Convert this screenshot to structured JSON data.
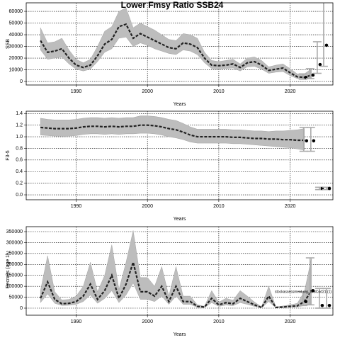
{
  "chart_data": [
    {
      "type": "line",
      "title": "Lower Fmsy Ratio SSB24",
      "xlabel": "Years",
      "ylabel": "SSB",
      "x": [
        1985,
        1986,
        1987,
        1988,
        1989,
        1990,
        1991,
        1992,
        1993,
        1994,
        1995,
        1996,
        1997,
        1998,
        1999,
        2000,
        2001,
        2002,
        2003,
        2004,
        2005,
        2006,
        2007,
        2008,
        2009,
        2010,
        2011,
        2012,
        2013,
        2014,
        2015,
        2016,
        2017,
        2018,
        2019,
        2020,
        2021,
        2022,
        2023
      ],
      "values": [
        35000,
        25000,
        26000,
        28000,
        20000,
        14000,
        12000,
        14000,
        22000,
        32000,
        36000,
        47000,
        49000,
        37000,
        41000,
        38000,
        35000,
        32000,
        29000,
        28000,
        33000,
        32000,
        29000,
        20000,
        14000,
        13500,
        14000,
        15000,
        12000,
        16000,
        17000,
        14000,
        9500,
        10500,
        11500,
        7500,
        4000,
        3500,
        5500
      ],
      "lower": [
        27000,
        19000,
        20000,
        21000,
        15000,
        10500,
        9000,
        10500,
        17000,
        25000,
        28000,
        37000,
        38000,
        30000,
        33000,
        31000,
        28000,
        26000,
        24000,
        23000,
        27000,
        26000,
        23000,
        16000,
        11000,
        10500,
        11000,
        11500,
        9000,
        12500,
        13000,
        10500,
        7000,
        8000,
        8500,
        5000,
        2500,
        2000,
        2500
      ],
      "upper": [
        46000,
        33000,
        34000,
        37000,
        27000,
        19000,
        16000,
        19000,
        30000,
        43000,
        47000,
        60000,
        63000,
        46000,
        50000,
        47000,
        44000,
        40000,
        36000,
        35000,
        41000,
        40000,
        37000,
        25000,
        18000,
        17000,
        18000,
        19000,
        15000,
        20000,
        21000,
        18000,
        12500,
        14000,
        15000,
        11000,
        6500,
        6500,
        11000
      ],
      "points": {
        "x": [
          2022.2,
          2023.2,
          2024.2,
          2025.1
        ],
        "values": [
          3500,
          5500,
          14500,
          31000
        ],
        "lower": [
          2000,
          2500,
          7000,
          13000
        ],
        "upper": [
          6500,
          11000,
          34000,
          70000
        ]
      },
      "color": "#bdbdbd",
      "xlim": [
        1983,
        2026
      ],
      "xticks": [
        1990,
        2000,
        2010,
        2020
      ],
      "ylim": [
        -3000,
        67300
      ],
      "yticks": [
        0,
        10000,
        20000,
        30000,
        40000,
        50000,
        60000
      ],
      "grid": true
    },
    {
      "type": "line",
      "xlabel": "Years",
      "ylabel": "F3-5",
      "x": [
        1985,
        1986,
        1987,
        1988,
        1989,
        1990,
        1991,
        1992,
        1993,
        1994,
        1995,
        1996,
        1997,
        1998,
        1999,
        2000,
        2001,
        2002,
        2003,
        2004,
        2005,
        2006,
        2007,
        2008,
        2009,
        2010,
        2011,
        2012,
        2013,
        2014,
        2015,
        2016,
        2017,
        2018,
        2019,
        2020,
        2021,
        2022
      ],
      "values": [
        1.16,
        1.15,
        1.14,
        1.14,
        1.14,
        1.15,
        1.17,
        1.18,
        1.18,
        1.17,
        1.18,
        1.17,
        1.18,
        1.18,
        1.2,
        1.2,
        1.19,
        1.17,
        1.14,
        1.12,
        1.08,
        1.03,
        1.0,
        1.0,
        1.0,
        1.0,
        1.0,
        0.99,
        0.99,
        0.98,
        0.97,
        0.97,
        0.96,
        0.96,
        0.95,
        0.95,
        0.94,
        0.94
      ],
      "lower": [
        1.03,
        1.02,
        1.01,
        1.01,
        1.01,
        1.02,
        1.04,
        1.05,
        1.05,
        1.04,
        1.05,
        1.04,
        1.05,
        1.05,
        1.06,
        1.06,
        1.05,
        1.03,
        1.0,
        0.98,
        0.95,
        0.91,
        0.89,
        0.89,
        0.89,
        0.89,
        0.89,
        0.88,
        0.88,
        0.87,
        0.86,
        0.85,
        0.84,
        0.83,
        0.82,
        0.81,
        0.79,
        0.77
      ],
      "upper": [
        1.32,
        1.3,
        1.29,
        1.29,
        1.29,
        1.3,
        1.32,
        1.33,
        1.33,
        1.32,
        1.33,
        1.32,
        1.33,
        1.33,
        1.36,
        1.36,
        1.35,
        1.33,
        1.3,
        1.28,
        1.23,
        1.17,
        1.13,
        1.13,
        1.13,
        1.13,
        1.13,
        1.12,
        1.12,
        1.11,
        1.1,
        1.1,
        1.09,
        1.1,
        1.1,
        1.11,
        1.12,
        1.14
      ],
      "points": {
        "x": [
          2022.3,
          2023.3,
          2024.5,
          2025.5
        ],
        "values": [
          0.93,
          0.93,
          0.11,
          0.11
        ],
        "lower": [
          0.75,
          0.75,
          0.09,
          0.09
        ],
        "upper": [
          1.16,
          1.16,
          0.13,
          0.13
        ]
      },
      "color": "#bdbdbd",
      "xlim": [
        1983,
        2026
      ],
      "xticks": [
        1990,
        2000,
        2010,
        2020
      ],
      "ylim": [
        -0.085,
        1.44
      ],
      "yticks": [
        {
          "value": 0,
          "label": "0.0"
        },
        {
          "value": 0.2,
          "label": "0.2"
        },
        {
          "value": 0.4,
          "label": "0.4"
        },
        {
          "value": 0.6,
          "label": "0.6"
        },
        {
          "value": 0.8,
          "label": "0.8"
        },
        {
          "value": 1,
          "label": "1.0"
        },
        {
          "value": 1.2,
          "label": "1.2"
        },
        {
          "value": 1.4,
          "label": "1.4"
        }
      ],
      "grid": true
    },
    {
      "type": "line",
      "xlabel": "Years",
      "ylabel": "Recruits (age 1)",
      "annotation": "stockassessment.org, WBCod21 (1)",
      "x": [
        1985,
        1986,
        1987,
        1988,
        1989,
        1990,
        1991,
        1992,
        1993,
        1994,
        1995,
        1996,
        1997,
        1998,
        1999,
        2000,
        2001,
        2002,
        2003,
        2004,
        2005,
        2006,
        2007,
        2008,
        2009,
        2010,
        2011,
        2012,
        2013,
        2014,
        2015,
        2016,
        2017,
        2018,
        2019,
        2020,
        2021,
        2022,
        2023
      ],
      "values": [
        45000,
        120000,
        40000,
        20000,
        22000,
        30000,
        55000,
        110000,
        40000,
        80000,
        150000,
        45000,
        110000,
        210000,
        75000,
        75000,
        55000,
        100000,
        30000,
        100000,
        30000,
        30000,
        8000,
        5000,
        45000,
        15000,
        25000,
        20000,
        45000,
        30000,
        15000,
        3000,
        55000,
        3000,
        5000,
        8000,
        10000,
        30000,
        80000
      ],
      "lower": [
        25000,
        65000,
        22000,
        12000,
        13000,
        17000,
        30000,
        60000,
        22000,
        44000,
        80000,
        25000,
        60000,
        115000,
        40000,
        40000,
        30000,
        55000,
        17000,
        55000,
        17000,
        17000,
        4000,
        2500,
        25000,
        8000,
        14000,
        11000,
        25000,
        17000,
        8000,
        1500,
        30000,
        1500,
        2500,
        4000,
        5000,
        12000,
        15000
      ],
      "upper": [
        80000,
        240000,
        75000,
        37000,
        40000,
        55000,
        100000,
        210000,
        75000,
        150000,
        290000,
        85000,
        210000,
        355000,
        140000,
        140000,
        100000,
        190000,
        55000,
        190000,
        55000,
        55000,
        15000,
        9000,
        80000,
        27000,
        45000,
        36000,
        80000,
        55000,
        28000,
        6000,
        100000,
        6000,
        10000,
        15000,
        22000,
        75000,
        230000
      ],
      "points": {
        "x": [
          2022.2,
          2023.2,
          2024.5,
          2025.5
        ],
        "values": [
          30000,
          80000,
          12000,
          12000
        ],
        "lower": [
          12000,
          15000,
          0,
          0
        ],
        "upper": [
          75000,
          230000,
          90000,
          90000
        ]
      },
      "color": "#bdbdbd",
      "xlim": [
        1983,
        2026
      ],
      "xticks": [
        1990,
        2000,
        2010,
        2020
      ],
      "ylim": [
        -32400,
        372700
      ],
      "yticks": [
        0,
        50000,
        100000,
        150000,
        200000,
        250000,
        300000,
        350000
      ],
      "grid": true
    }
  ]
}
